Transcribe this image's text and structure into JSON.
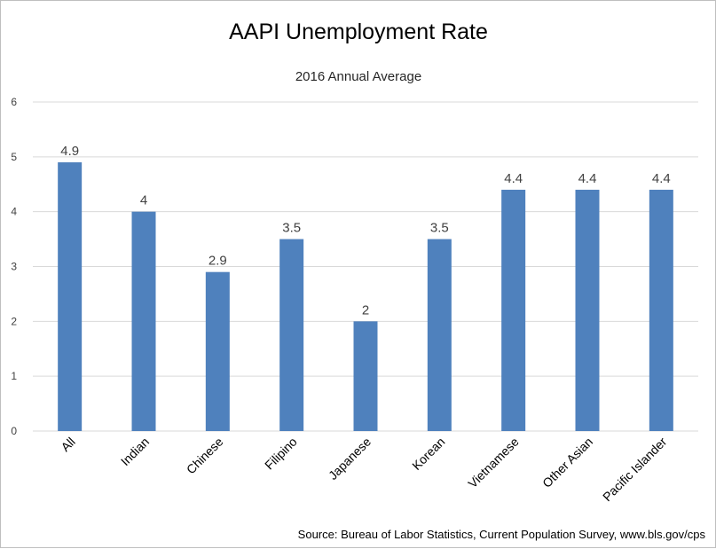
{
  "chart_data": {
    "type": "bar",
    "title": "AAPI Unemployment Rate",
    "subtitle": "2016 Annual Average",
    "categories": [
      "All",
      "Indian",
      "Chinese",
      "Filipino",
      "Japanese",
      "Korean",
      "Vietnamese",
      "Other Asian",
      "Pacific Islander"
    ],
    "values": [
      4.9,
      4,
      2.9,
      3.5,
      2,
      3.5,
      4.4,
      4.4,
      4.4
    ],
    "data_labels": [
      "4.9",
      "4",
      "2.9",
      "3.5",
      "2",
      "3.5",
      "4.4",
      "4.4",
      "4.4"
    ],
    "y_ticks": [
      "0",
      "1",
      "2",
      "3",
      "4",
      "5",
      "6"
    ],
    "ylim": [
      0,
      6
    ],
    "grid": true,
    "legend": "none",
    "bar_color": "#4f81bd",
    "source": "Source:  Bureau of Labor Statistics, Current Population Survey, www.bls.gov/cps"
  }
}
